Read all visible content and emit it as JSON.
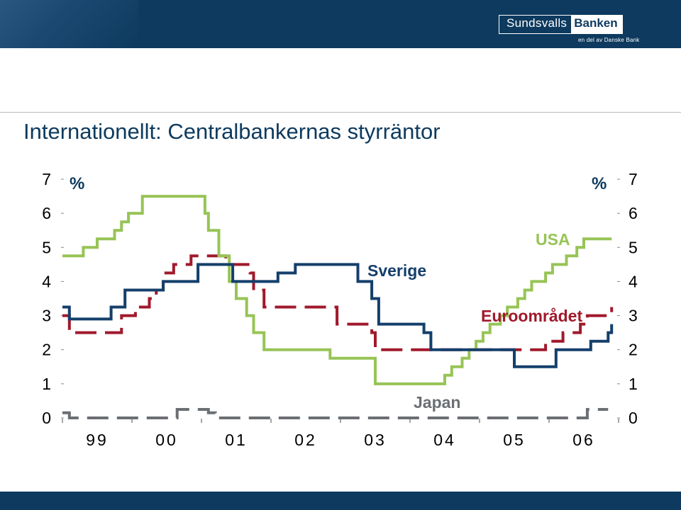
{
  "header": {
    "logo_part1": "Sundsvalls",
    "logo_part2": "Banken",
    "logo_sub": "en del av Danske Bank"
  },
  "page_title": "Internationellt: Centralbankernas styrräntor",
  "colors": {
    "header_bg": "#0d3a5e",
    "title": "#0d3a5e",
    "sverige": "#143f6b",
    "usa": "#97c456",
    "euro": "#a0192c",
    "japan": "#6b6f73"
  },
  "chart_data": {
    "type": "line",
    "title": "",
    "unit_left": "%",
    "unit_right": "%",
    "ylim": [
      0,
      7
    ],
    "yticks": [
      "0",
      "1",
      "2",
      "3",
      "4",
      "5",
      "6",
      "7"
    ],
    "xlim": [
      1999.0,
      2007.0
    ],
    "xticks": [
      "99",
      "00",
      "01",
      "02",
      "03",
      "04",
      "05",
      "06"
    ],
    "grid": false,
    "series": [
      {
        "name": "USA",
        "style": "solid",
        "color": "#97c456",
        "points": [
          [
            1999.0,
            4.75
          ],
          [
            1999.3,
            5.0
          ],
          [
            1999.5,
            5.25
          ],
          [
            1999.75,
            5.5
          ],
          [
            1999.85,
            5.75
          ],
          [
            1999.95,
            6.0
          ],
          [
            2000.15,
            6.5
          ],
          [
            2000.55,
            6.5
          ],
          [
            2001.05,
            6.0
          ],
          [
            2001.1,
            5.5
          ],
          [
            2001.25,
            4.75
          ],
          [
            2001.4,
            4.0
          ],
          [
            2001.5,
            3.5
          ],
          [
            2001.65,
            3.0
          ],
          [
            2001.75,
            2.5
          ],
          [
            2001.9,
            2.0
          ],
          [
            2002.85,
            1.75
          ],
          [
            2003.5,
            1.0
          ],
          [
            2004.5,
            1.25
          ],
          [
            2004.6,
            1.5
          ],
          [
            2004.75,
            1.75
          ],
          [
            2004.85,
            2.0
          ],
          [
            2004.95,
            2.25
          ],
          [
            2005.05,
            2.5
          ],
          [
            2005.15,
            2.75
          ],
          [
            2005.3,
            3.0
          ],
          [
            2005.4,
            3.25
          ],
          [
            2005.55,
            3.5
          ],
          [
            2005.65,
            3.75
          ],
          [
            2005.75,
            4.0
          ],
          [
            2005.95,
            4.25
          ],
          [
            2006.05,
            4.5
          ],
          [
            2006.25,
            4.75
          ],
          [
            2006.4,
            5.0
          ],
          [
            2006.5,
            5.25
          ],
          [
            2006.9,
            5.25
          ]
        ]
      },
      {
        "name": "Sverige",
        "style": "solid",
        "color": "#143f6b",
        "points": [
          [
            1999.0,
            3.25
          ],
          [
            1999.1,
            2.9
          ],
          [
            1999.7,
            3.25
          ],
          [
            1999.9,
            3.75
          ],
          [
            2000.45,
            4.0
          ],
          [
            2000.95,
            4.5
          ],
          [
            2001.45,
            4.0
          ],
          [
            2002.1,
            4.25
          ],
          [
            2002.35,
            4.5
          ],
          [
            2003.25,
            4.0
          ],
          [
            2003.45,
            3.5
          ],
          [
            2003.55,
            3.25
          ],
          [
            2003.55,
            2.75
          ],
          [
            2004.2,
            2.5
          ],
          [
            2004.3,
            2.0
          ],
          [
            2005.5,
            1.5
          ],
          [
            2006.1,
            2.0
          ],
          [
            2006.2,
            2.0
          ],
          [
            2006.6,
            2.25
          ],
          [
            2006.85,
            2.5
          ],
          [
            2006.9,
            2.75
          ]
        ]
      },
      {
        "name": "Euroområdet",
        "style": "dashed",
        "color": "#a0192c",
        "points": [
          [
            1999.0,
            3.0
          ],
          [
            1999.1,
            2.5
          ],
          [
            1999.85,
            3.0
          ],
          [
            2000.05,
            3.25
          ],
          [
            2000.25,
            3.5
          ],
          [
            2000.35,
            3.75
          ],
          [
            2000.45,
            4.25
          ],
          [
            2000.6,
            4.5
          ],
          [
            2000.85,
            4.75
          ],
          [
            2001.35,
            4.5
          ],
          [
            2001.7,
            4.25
          ],
          [
            2001.75,
            3.75
          ],
          [
            2001.9,
            3.25
          ],
          [
            2002.95,
            2.75
          ],
          [
            2003.45,
            2.5
          ],
          [
            2003.5,
            2.0
          ],
          [
            2005.95,
            2.25
          ],
          [
            2006.2,
            2.5
          ],
          [
            2006.45,
            2.75
          ],
          [
            2006.55,
            3.0
          ],
          [
            2006.9,
            3.25
          ]
        ]
      },
      {
        "name": "Japan",
        "style": "dashed",
        "color": "#6b6f73",
        "points": [
          [
            1999.0,
            0.15
          ],
          [
            1999.1,
            0.0
          ],
          [
            2000.65,
            0.25
          ],
          [
            2001.1,
            0.15
          ],
          [
            2001.2,
            0.0
          ],
          [
            2006.55,
            0.25
          ],
          [
            2006.85,
            0.25
          ]
        ]
      }
    ],
    "labels": {
      "sverige": "Sverige",
      "usa": "USA",
      "euro": "Euroområdet",
      "japan": "Japan"
    }
  }
}
